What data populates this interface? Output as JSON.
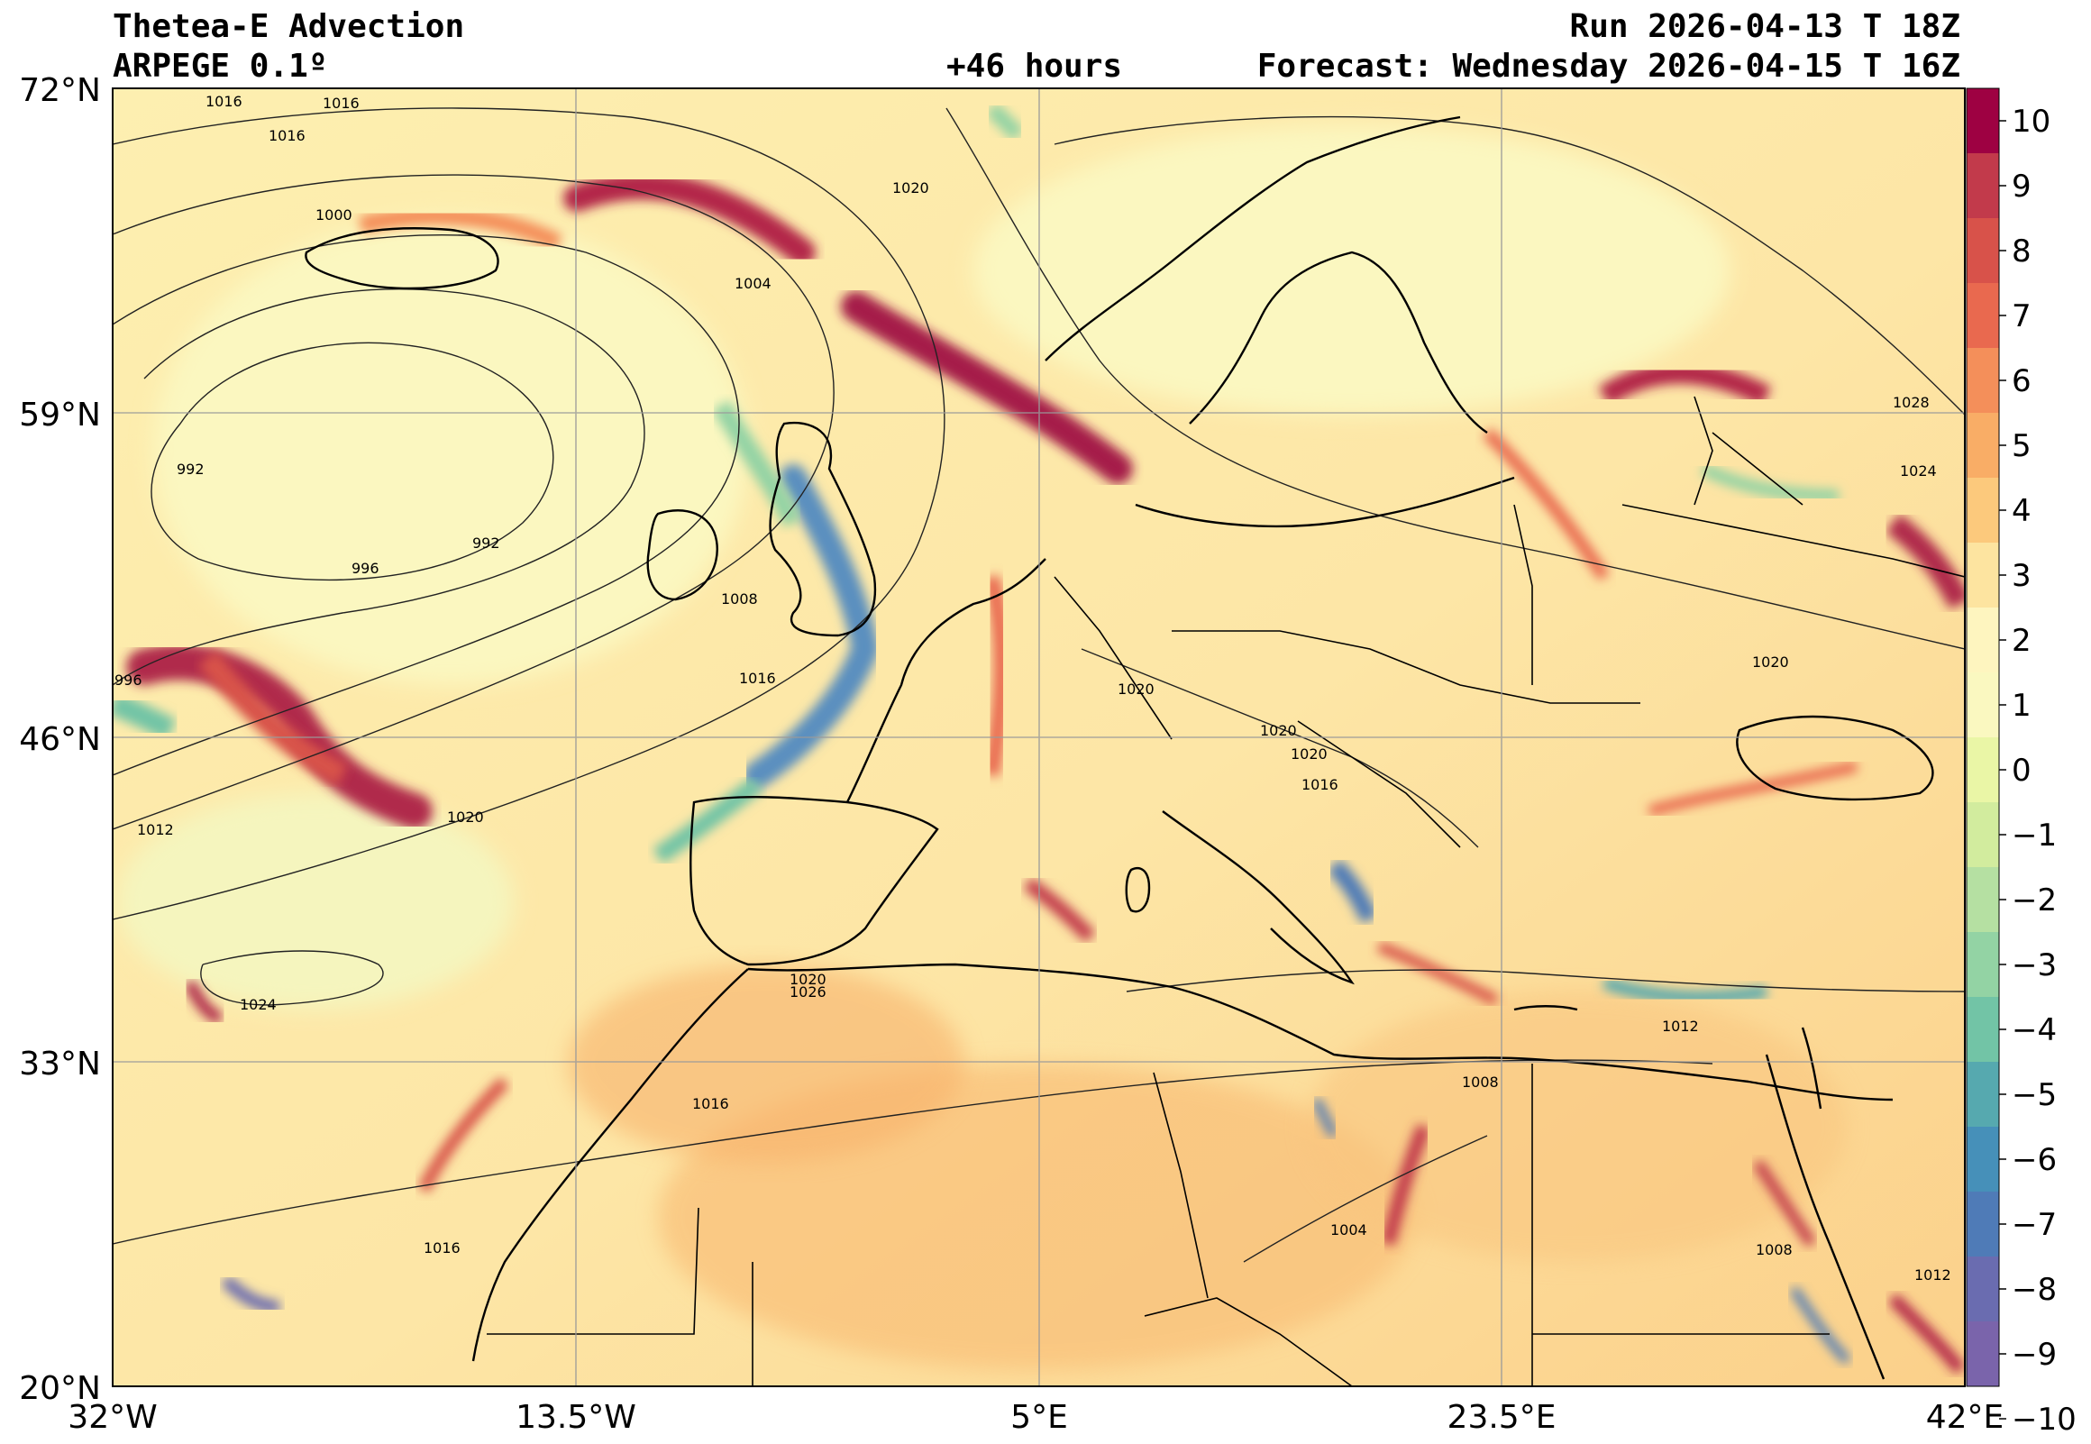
{
  "header": {
    "title": "Thetea-E Advection",
    "model": "ARPEGE 0.1º",
    "lead": "+46 hours",
    "run": "Run 2026-04-13 T 18Z",
    "forecast": "Forecast: Wednesday 2026-04-15 T 16Z"
  },
  "map": {
    "lat_ticks": [
      "72°N",
      "59°N",
      "46°N",
      "33°N",
      "20°N"
    ],
    "lon_ticks": [
      "32°W",
      "13.5°W",
      "5°E",
      "23.5°E",
      "42°E"
    ],
    "isobar_labels": [
      "1016",
      "1016",
      "1016",
      "1000",
      "1020",
      "1004",
      "992",
      "992",
      "996",
      "1008",
      "1016",
      "996",
      "1012",
      "1020",
      "1024",
      "1020",
      "1020",
      "1020",
      "1016",
      "1020",
      "1026",
      "1016",
      "1016",
      "1008",
      "1012",
      "1004",
      "1008",
      "1012",
      "1028",
      "1024",
      "1020"
    ]
  },
  "colorbar": {
    "ticks": [
      "10",
      "9",
      "8",
      "7",
      "6",
      "5",
      "4",
      "3",
      "2",
      "1",
      "0",
      "−1",
      "−2",
      "−3",
      "−4",
      "−5",
      "−6",
      "−7",
      "−8",
      "−9",
      "−10"
    ],
    "colors": [
      "#9e0142",
      "#c23a4b",
      "#d8524a",
      "#e9694f",
      "#f48f5a",
      "#f9ad66",
      "#fcc97c",
      "#fde4a0",
      "#fef5bf",
      "#faf8c0",
      "#eaf6a6",
      "#d2ec9e",
      "#b5e0a2",
      "#93d3a4",
      "#72c4a6",
      "#56a9af",
      "#4690b9",
      "#4f7bb7",
      "#6a6cb0",
      "#7a64ab"
    ]
  }
}
